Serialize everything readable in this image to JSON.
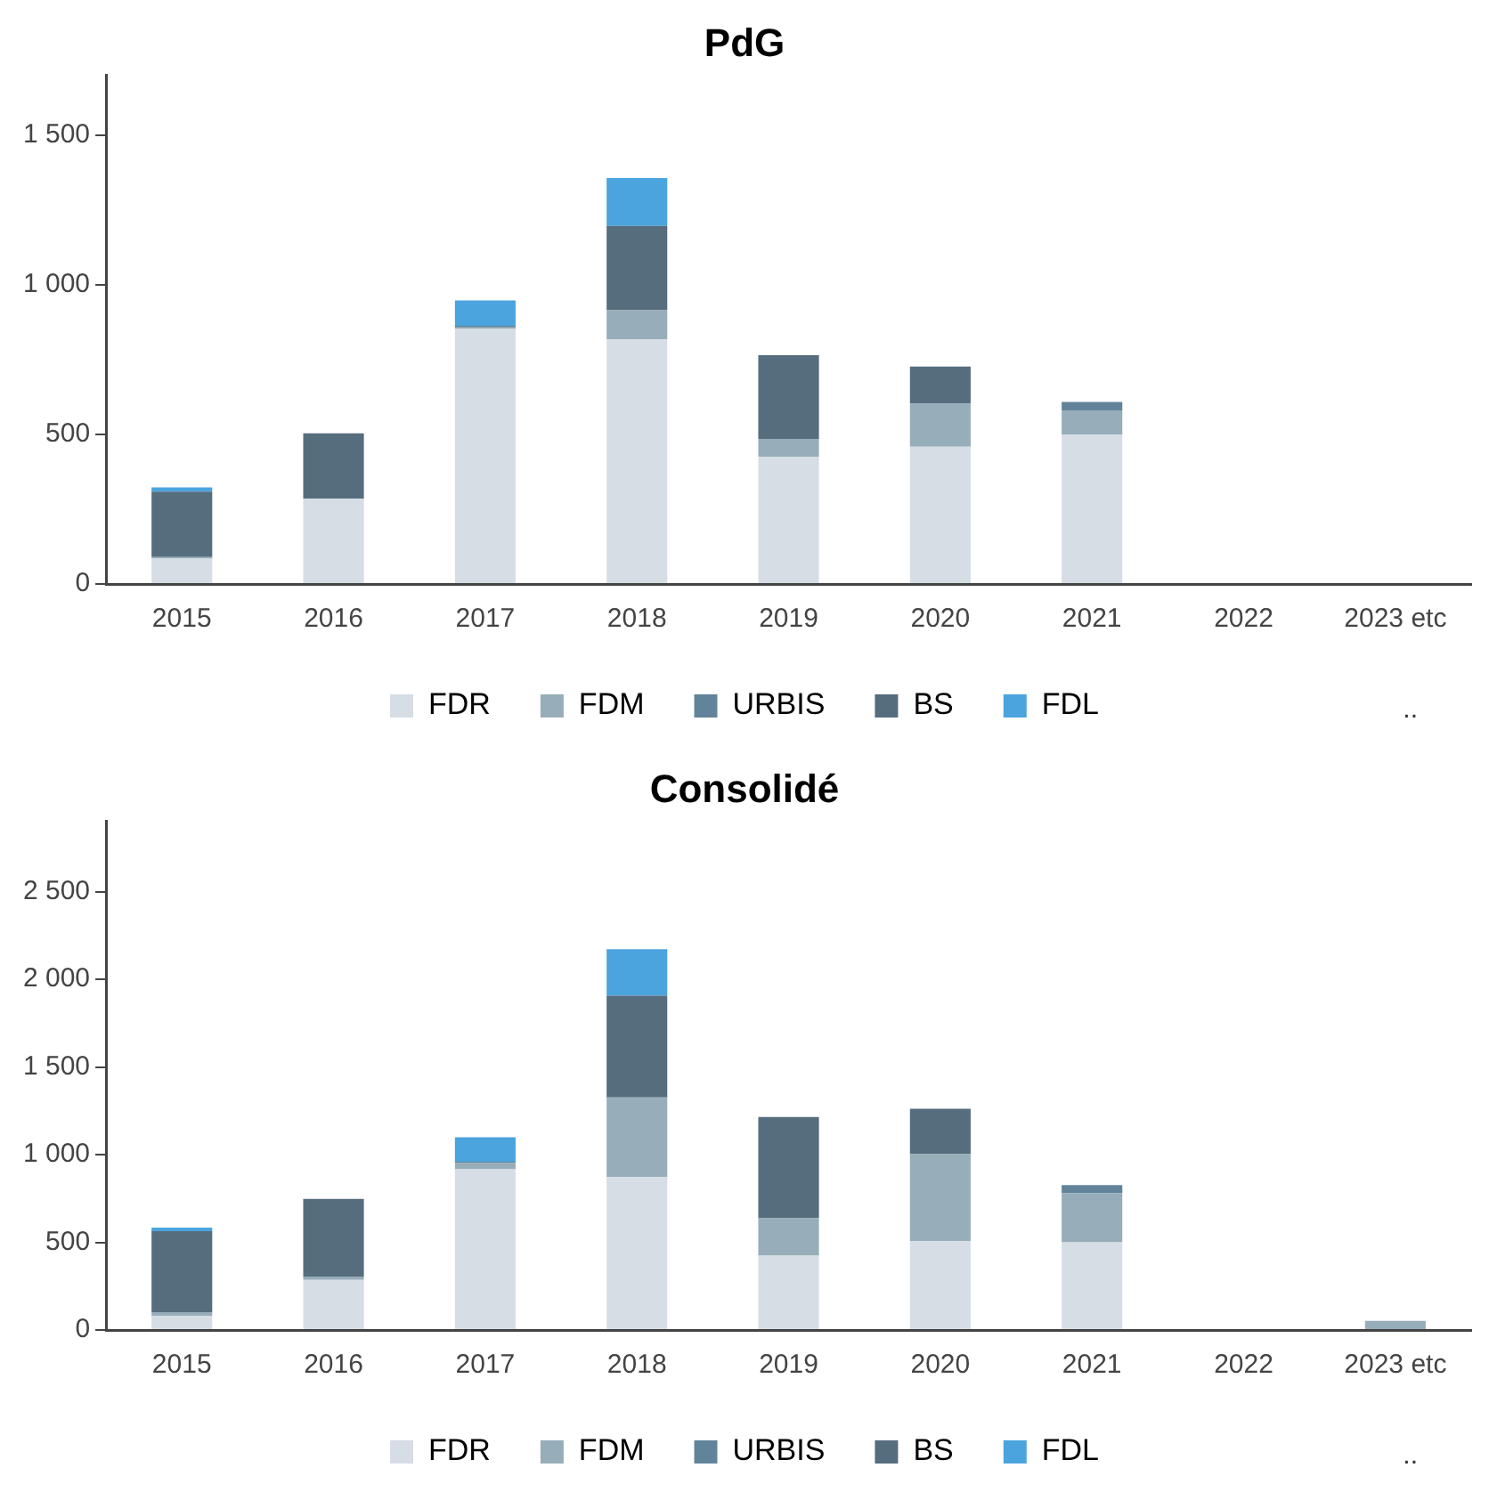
{
  "chart_data": [
    {
      "type": "bar",
      "title": "PdG",
      "stacked": true,
      "categories": [
        "2015",
        "2016",
        "2017",
        "2018",
        "2019",
        "2020",
        "2021",
        "2022",
        "2023 etc"
      ],
      "series": [
        {
          "name": "FDR",
          "color": "#d6dde4",
          "values": [
            85,
            285,
            853,
            818,
            425,
            459,
            500,
            0,
            0
          ]
        },
        {
          "name": "FDM",
          "color": "#97adb9",
          "values": [
            5,
            0,
            5,
            97,
            60,
            144,
            80,
            0,
            0
          ]
        },
        {
          "name": "URBIS",
          "color": "#62849a",
          "values": [
            0,
            0,
            5,
            0,
            0,
            0,
            29,
            0,
            0
          ]
        },
        {
          "name": "BS",
          "color": "#566d7e",
          "values": [
            219,
            219,
            0,
            282,
            280,
            124,
            0,
            0,
            0
          ]
        },
        {
          "name": "FDL",
          "color": "#4ba4de",
          "values": [
            14,
            0,
            85,
            160,
            0,
            0,
            0,
            0,
            0
          ]
        }
      ],
      "ylim": [
        0,
        1700
      ],
      "yticks": [
        0,
        {
          "value": 500,
          "label": "500"
        },
        {
          "value": 1000,
          "label": "1 000"
        },
        {
          "value": 1500,
          "label": "1 500"
        }
      ],
      "grid": false,
      "legend": "bottom",
      "annotations": [
        ".."
      ]
    },
    {
      "type": "bar",
      "title": "Consolidé",
      "stacked": true,
      "categories": [
        "2015",
        "2016",
        "2017",
        "2018",
        "2019",
        "2020",
        "2021",
        "2022",
        "2023 etc"
      ],
      "series": [
        {
          "name": "FDR",
          "color": "#d6dde4",
          "values": [
            81,
            285,
            916,
            872,
            424,
            506,
            500,
            0,
            0
          ]
        },
        {
          "name": "FDM",
          "color": "#97adb9",
          "values": [
            21,
            20,
            37,
            454,
            213,
            497,
            279,
            0,
            52
          ]
        },
        {
          "name": "URBIS",
          "color": "#62849a",
          "values": [
            0,
            0,
            6,
            0,
            0,
            0,
            47,
            0,
            0
          ]
        },
        {
          "name": "BS",
          "color": "#566d7e",
          "values": [
            462,
            442,
            0,
            581,
            578,
            259,
            0,
            0,
            0
          ]
        },
        {
          "name": "FDL",
          "color": "#4ba4de",
          "values": [
            20,
            0,
            140,
            265,
            0,
            0,
            0,
            0,
            0
          ]
        }
      ],
      "ylim": [
        0,
        2900
      ],
      "yticks": [
        0,
        {
          "value": 500,
          "label": "500"
        },
        {
          "value": 1000,
          "label": "1 000"
        },
        {
          "value": 1500,
          "label": "1 500"
        },
        {
          "value": 2000,
          "label": "2 000"
        },
        {
          "value": 2500,
          "label": "2 500"
        }
      ],
      "grid": false,
      "legend": "bottom",
      "annotations": [
        ".."
      ]
    }
  ]
}
